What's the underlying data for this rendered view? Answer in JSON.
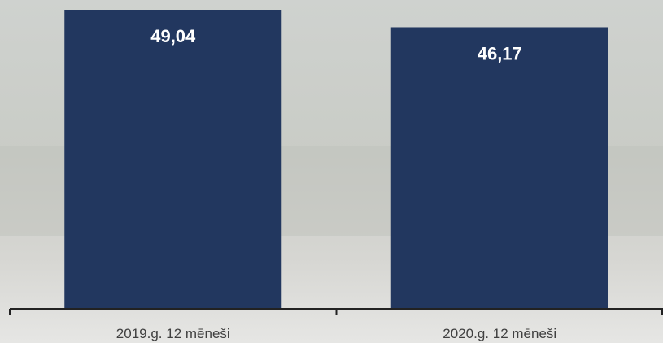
{
  "chart_data": {
    "type": "bar",
    "categories": [
      "2019.g. 12 mēneši",
      "2020.g. 12 mēneši"
    ],
    "values": [
      49.04,
      46.17
    ],
    "value_labels": [
      "49,04",
      "46,17"
    ],
    "color": "#22375f"
  }
}
